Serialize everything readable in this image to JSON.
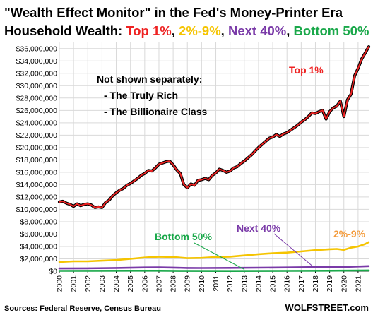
{
  "header": {
    "title_line1": "\"Wealth Effect Monitor\" in the Fed's Money-Printer Era",
    "title_line2_prefix": "Household Wealth: ",
    "title_parts": [
      {
        "text": "Top 1%",
        "color": "#ee2222"
      },
      {
        "text": ", ",
        "color": "#000000"
      },
      {
        "text": "2%-9%",
        "color": "#f5c400"
      },
      {
        "text": ", ",
        "color": "#000000"
      },
      {
        "text": "Next 40%",
        "color": "#7a3aa8"
      },
      {
        "text": ", ",
        "color": "#000000"
      },
      {
        "text": "Bottom 50%",
        "color": "#1aa84a"
      }
    ]
  },
  "annotations": {
    "note_title": "Not shown separately:",
    "note_line1": "- The Truly Rich",
    "note_line2": "- The Billionaire Class"
  },
  "footer": {
    "source": "Sources: Federal Reserve, Census Bureau",
    "brand": "WOLFSTREET.com"
  },
  "chart_data": {
    "type": "line",
    "y_tick_labels": [
      "$0",
      "$2,000,000",
      "$4,000,000",
      "$6,000,000",
      "$8,000,000",
      "$10,000,000",
      "$12,000,000",
      "$14,000,000",
      "$16,000,000",
      "$18,000,000",
      "$20,000,000",
      "$22,000,000",
      "$24,000,000",
      "$26,000,000",
      "$28,000,000",
      "$30,000,000",
      "$32,000,000",
      "$34,000,000",
      "$36,000,000"
    ],
    "x_tick_labels": [
      "2000",
      "2001",
      "2002",
      "2003",
      "2004",
      "2005",
      "2006",
      "2007",
      "2008",
      "2009",
      "2010",
      "2011",
      "2012",
      "2013",
      "2014",
      "2015",
      "2016",
      "2017",
      "2018",
      "2019",
      "2020",
      "2021"
    ],
    "ylim": [
      0,
      37000000
    ],
    "xlim": [
      2000,
      2021.75
    ],
    "grid": true,
    "series": [
      {
        "name": "Top 1%",
        "color": "#ee2222",
        "outline": "#000000",
        "label": "Top 1%",
        "x": [
          2000,
          2000.25,
          2000.5,
          2000.75,
          2001,
          2001.25,
          2001.5,
          2001.75,
          2002,
          2002.25,
          2002.5,
          2002.75,
          2003,
          2003.25,
          2003.5,
          2003.75,
          2004,
          2004.25,
          2004.5,
          2004.75,
          2005,
          2005.25,
          2005.5,
          2005.75,
          2006,
          2006.25,
          2006.5,
          2006.75,
          2007,
          2007.25,
          2007.5,
          2007.75,
          2008,
          2008.25,
          2008.5,
          2008.75,
          2009,
          2009.25,
          2009.5,
          2009.75,
          2010,
          2010.25,
          2010.5,
          2010.75,
          2011,
          2011.25,
          2011.5,
          2011.75,
          2012,
          2012.25,
          2012.5,
          2012.75,
          2013,
          2013.25,
          2013.5,
          2013.75,
          2014,
          2014.25,
          2014.5,
          2014.75,
          2015,
          2015.25,
          2015.5,
          2015.75,
          2016,
          2016.25,
          2016.5,
          2016.75,
          2017,
          2017.25,
          2017.5,
          2017.75,
          2018,
          2018.25,
          2018.5,
          2018.75,
          2019,
          2019.25,
          2019.5,
          2019.75,
          2020,
          2020.25,
          2020.5,
          2020.75,
          2021,
          2021.25,
          2021.5,
          2021.75
        ],
        "values": [
          11200000,
          11300000,
          11000000,
          10800000,
          10500000,
          10900000,
          10600000,
          10800000,
          10900000,
          10700000,
          10300000,
          10400000,
          10300000,
          11100000,
          11500000,
          12200000,
          12700000,
          13100000,
          13400000,
          13900000,
          14200000,
          14600000,
          15000000,
          15500000,
          15800000,
          16300000,
          16200000,
          16700000,
          17300000,
          17500000,
          17700000,
          17800000,
          17200000,
          16400000,
          15800000,
          14000000,
          13500000,
          14100000,
          13900000,
          14700000,
          14800000,
          15000000,
          14800000,
          15500000,
          15900000,
          16500000,
          16300000,
          16000000,
          16200000,
          16700000,
          16900000,
          17400000,
          17800000,
          18300000,
          18800000,
          19400000,
          20000000,
          20500000,
          21000000,
          21500000,
          21700000,
          22100000,
          21800000,
          22200000,
          22400000,
          22800000,
          23200000,
          23600000,
          24100000,
          24500000,
          25000000,
          25600000,
          25500000,
          25800000,
          26000000,
          24600000,
          25800000,
          26400000,
          26700000,
          27500000,
          25000000,
          27700000,
          28600000,
          31600000,
          32800000,
          34300000,
          35300000,
          36300000
        ]
      },
      {
        "name": "2%-9%",
        "color": "#f5c400",
        "label": "2%-9%",
        "x": [
          2000,
          2001,
          2002,
          2003,
          2004,
          2005,
          2006,
          2007,
          2008,
          2009,
          2010,
          2011,
          2012,
          2013,
          2014,
          2015,
          2016,
          2017,
          2018,
          2019,
          2019.5,
          2020,
          2020.5,
          2021,
          2021.5,
          2021.75
        ],
        "values": [
          1500000,
          1600000,
          1600000,
          1700000,
          1800000,
          2000000,
          2200000,
          2350000,
          2300000,
          2100000,
          2150000,
          2300000,
          2350000,
          2550000,
          2750000,
          2900000,
          3000000,
          3200000,
          3400000,
          3550000,
          3600000,
          3450000,
          3800000,
          4000000,
          4400000,
          4700000
        ]
      },
      {
        "name": "Next 40%",
        "color": "#7a3aa8",
        "label": "Next 40%",
        "x": [
          2000,
          2002,
          2004,
          2006,
          2007,
          2008,
          2009,
          2010,
          2012,
          2014,
          2016,
          2018,
          2020,
          2021,
          2021.75
        ],
        "values": [
          450000,
          470000,
          520000,
          600000,
          620000,
          580000,
          520000,
          510000,
          540000,
          570000,
          610000,
          660000,
          700000,
          760000,
          820000
        ]
      },
      {
        "name": "Bottom 50%",
        "color": "#1aa84a",
        "label": "Bottom 50%",
        "x": [
          2000,
          2005,
          2007,
          2009,
          2012,
          2016,
          2019,
          2021,
          2021.75
        ],
        "values": [
          60000,
          75000,
          80000,
          40000,
          30000,
          55000,
          80000,
          110000,
          130000
        ]
      }
    ]
  }
}
